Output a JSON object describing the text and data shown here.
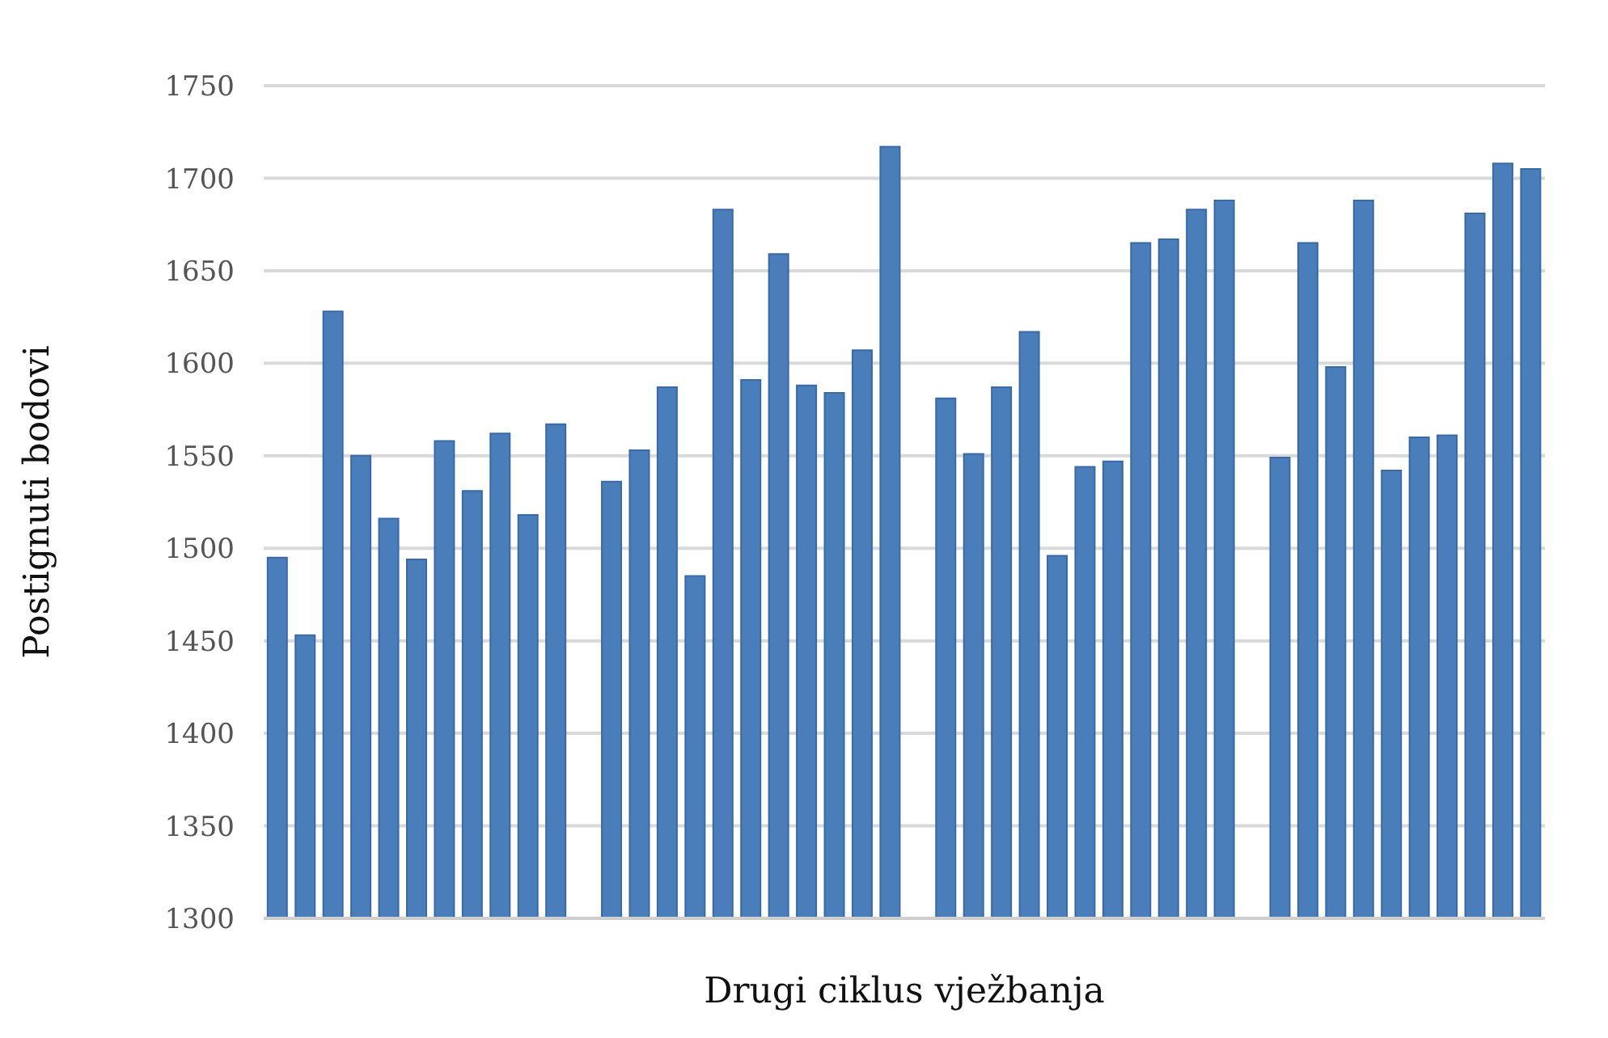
{
  "chart_data": {
    "type": "bar",
    "xlabel": "Drugi ciklus vježbanja",
    "ylabel": "Postignuti bodovi",
    "categories": [
      null,
      null,
      null,
      null,
      null,
      null,
      null,
      null,
      null,
      null,
      null,
      null,
      null,
      null,
      null,
      null,
      null,
      null,
      null,
      null,
      null,
      null,
      null,
      null,
      null,
      null,
      null,
      null,
      null,
      null,
      null,
      null,
      null,
      null,
      null,
      null,
      null,
      null,
      null,
      null,
      null,
      null,
      null,
      null,
      null,
      null
    ],
    "values": [
      1495,
      1453,
      1628,
      1550,
      1516,
      1494,
      1558,
      1531,
      1562,
      1518,
      1567,
      null,
      1536,
      1553,
      1587,
      1485,
      1683,
      1591,
      1659,
      1588,
      1584,
      1607,
      1717,
      null,
      1581,
      1551,
      1587,
      1617,
      1496,
      1544,
      1547,
      1665,
      1667,
      1683,
      1688,
      null,
      1549,
      1665,
      1598,
      1688,
      1542,
      1560,
      1561,
      1681,
      1708,
      1705
    ],
    "color": "#4a7ebb",
    "ylim": [
      1300,
      1750
    ],
    "yticks": [
      1300,
      1350,
      1400,
      1450,
      1500,
      1550,
      1600,
      1650,
      1700,
      1750
    ],
    "grid": "y",
    "legend": false,
    "tick_labels": "y"
  }
}
